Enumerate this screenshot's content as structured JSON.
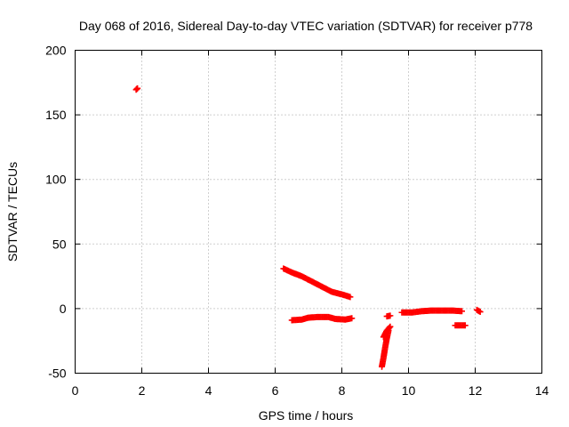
{
  "chart_data": {
    "type": "scatter",
    "title": "Day 068 of 2016, Sidereal Day-to-day VTEC variation (SDTVAR) for receiver p778",
    "xlabel": "GPS time / hours",
    "ylabel": "SDTVAR / TECUs",
    "xlim": [
      0,
      14
    ],
    "ylim": [
      -50,
      200
    ],
    "xticks": [
      "0",
      "2",
      "4",
      "6",
      "8",
      "10",
      "12",
      "14"
    ],
    "yticks": [
      "-50",
      "0",
      "50",
      "100",
      "150",
      "200"
    ],
    "grid": true,
    "legend": "none",
    "marker": "plus",
    "color": "#ff0000",
    "series": [
      {
        "segments": [
          [
            [
              1.83,
              169.5
            ],
            [
              1.87,
              170.5
            ]
          ],
          [
            [
              6.25,
              31
            ],
            [
              6.5,
              28
            ],
            [
              6.8,
              25
            ],
            [
              7.1,
              21
            ],
            [
              7.4,
              17
            ],
            [
              7.7,
              13
            ],
            [
              8.0,
              11
            ],
            [
              8.25,
              9
            ]
          ],
          [
            [
              6.5,
              -9
            ],
            [
              6.8,
              -8.5
            ],
            [
              7.0,
              -7
            ],
            [
              7.3,
              -6.5
            ],
            [
              7.6,
              -6.5
            ],
            [
              7.8,
              -8
            ],
            [
              8.1,
              -8.5
            ],
            [
              8.3,
              -7.5
            ]
          ],
          [
            [
              9.35,
              -6
            ],
            [
              9.45,
              -5.5
            ]
          ],
          [
            [
              9.2,
              -45
            ],
            [
              9.25,
              -38
            ],
            [
              9.3,
              -30
            ],
            [
              9.35,
              -23
            ],
            [
              9.4,
              -17
            ]
          ],
          [
            [
              9.25,
              -22
            ],
            [
              9.35,
              -17
            ],
            [
              9.45,
              -14
            ]
          ],
          [
            [
              9.8,
              -3
            ],
            [
              10.1,
              -3
            ],
            [
              10.4,
              -2
            ],
            [
              10.7,
              -1.5
            ],
            [
              11.0,
              -1.5
            ],
            [
              11.3,
              -1.5
            ],
            [
              11.6,
              -2
            ]
          ],
          [
            [
              11.4,
              -13
            ],
            [
              11.55,
              -13
            ],
            [
              11.7,
              -13
            ]
          ],
          [
            [
              12.05,
              -1
            ],
            [
              12.15,
              -2.5
            ]
          ]
        ]
      }
    ]
  }
}
